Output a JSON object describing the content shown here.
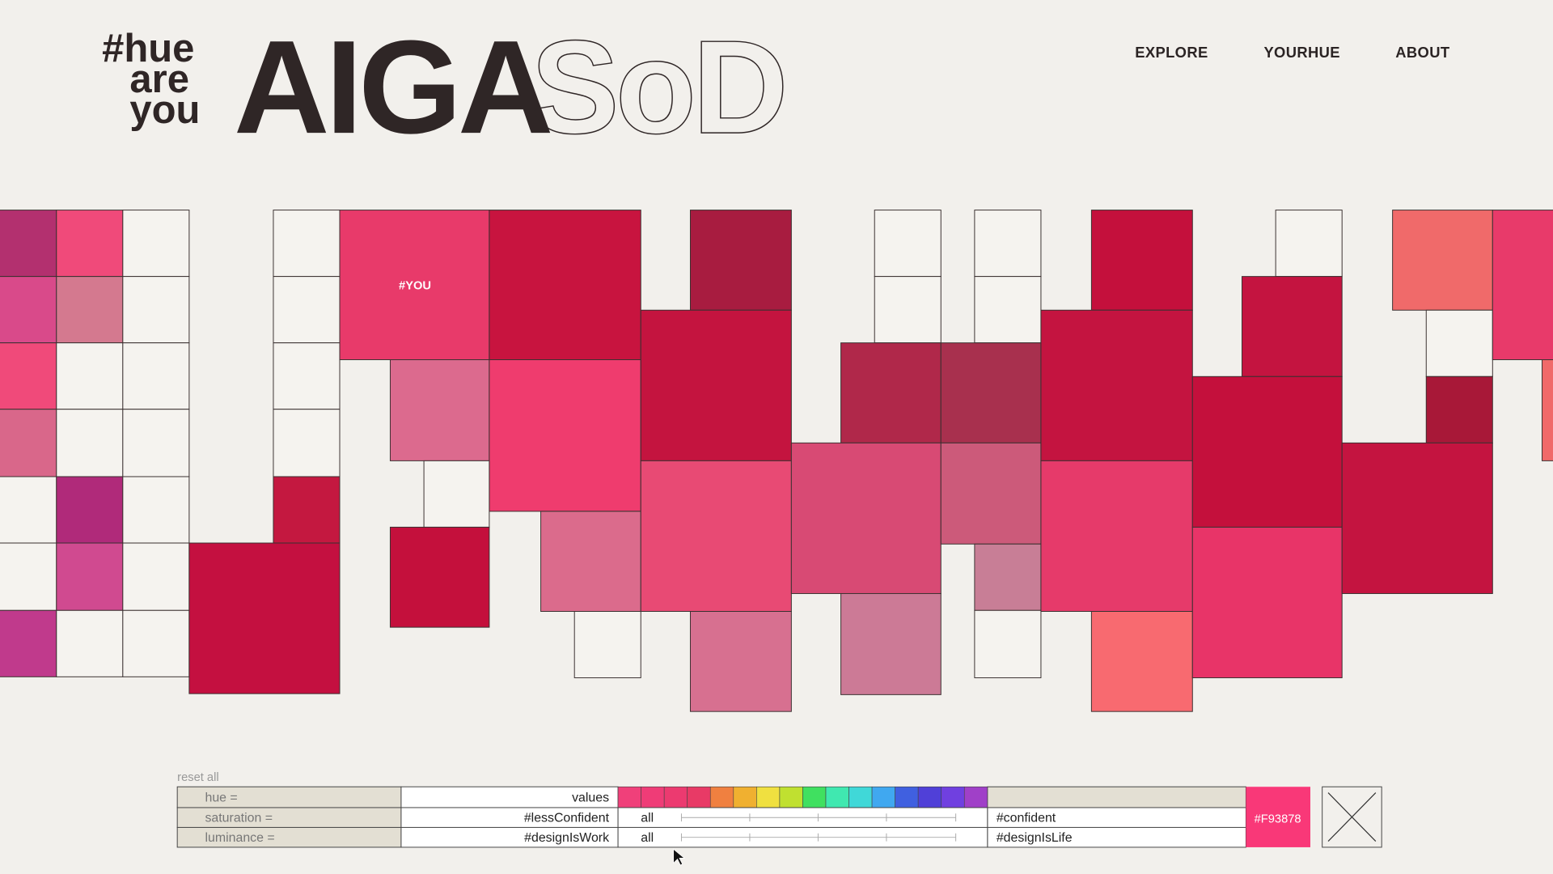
{
  "header": {
    "logo": [
      "#hue",
      "are",
      "you"
    ],
    "wordmark": "AIGA",
    "wordmark_outline": "SoD",
    "nav": [
      "EXPLORE",
      "YOURHUE",
      "ABOUT"
    ]
  },
  "grid": {
    "you_label": "#YOU"
  },
  "controls": {
    "reset": "reset all",
    "rows": [
      {
        "label": "hue =",
        "left": "values"
      },
      {
        "label": "saturation =",
        "left": "#lessConfident",
        "scope": "all",
        "right": "#confident"
      },
      {
        "label": "luminance =",
        "left": "#designIsWork",
        "scope": "all",
        "right": "#designIsLife"
      }
    ],
    "selected_color": "#F93878"
  }
}
